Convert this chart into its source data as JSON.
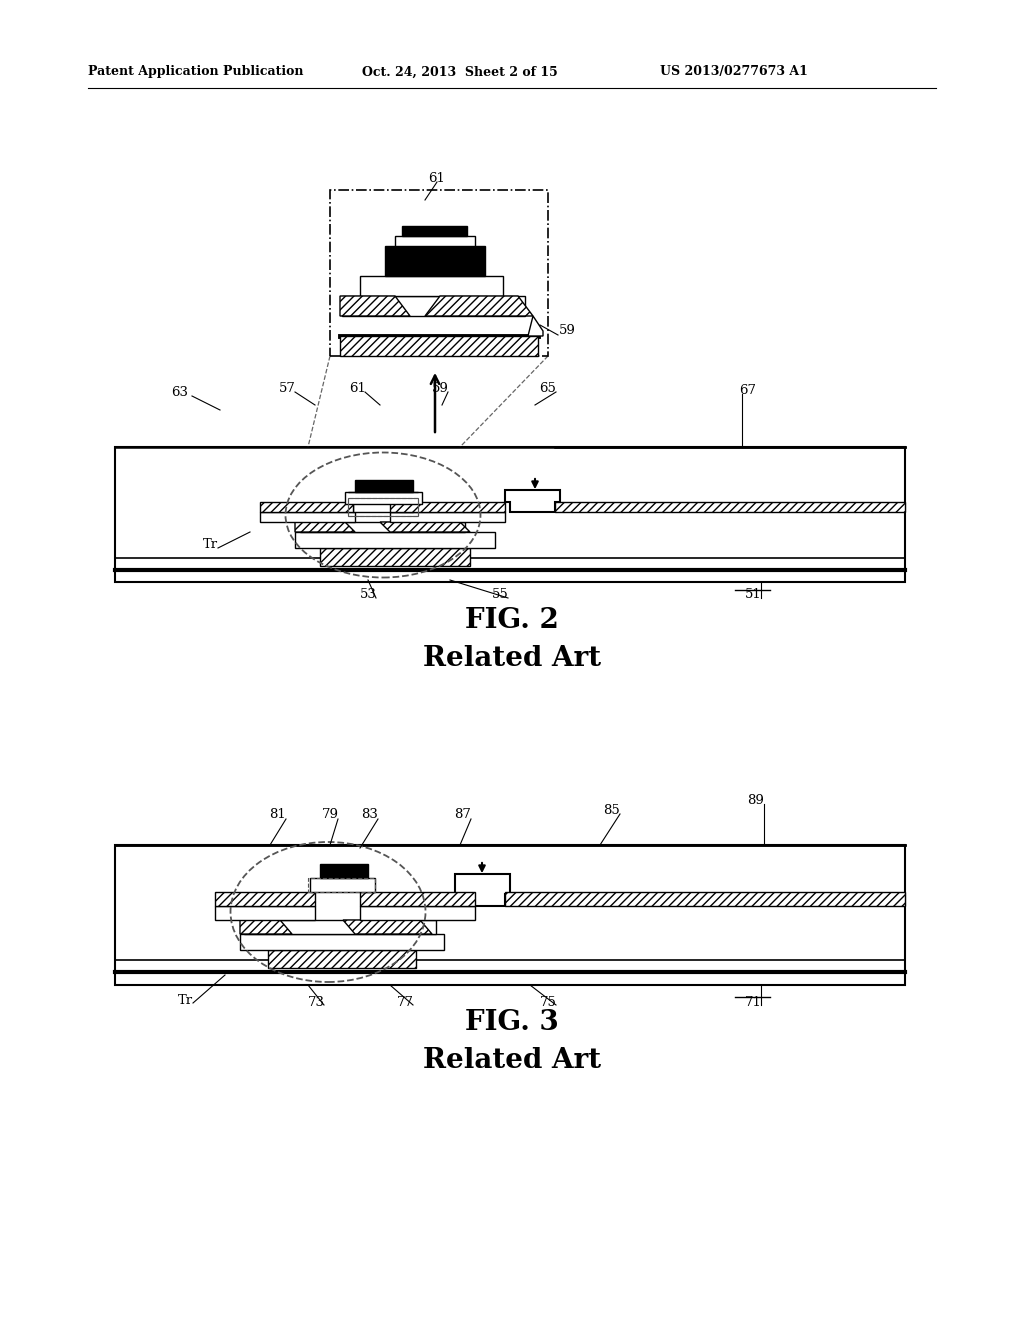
{
  "bg_color": "#ffffff",
  "header_left": "Patent Application Publication",
  "header_mid": "Oct. 24, 2013  Sheet 2 of 15",
  "header_right": "US 2013/0277673 A1",
  "fig2_title": "FIG. 2",
  "fig2_subtitle": "Related Art",
  "fig3_title": "FIG. 3",
  "fig3_subtitle": "Related Art"
}
